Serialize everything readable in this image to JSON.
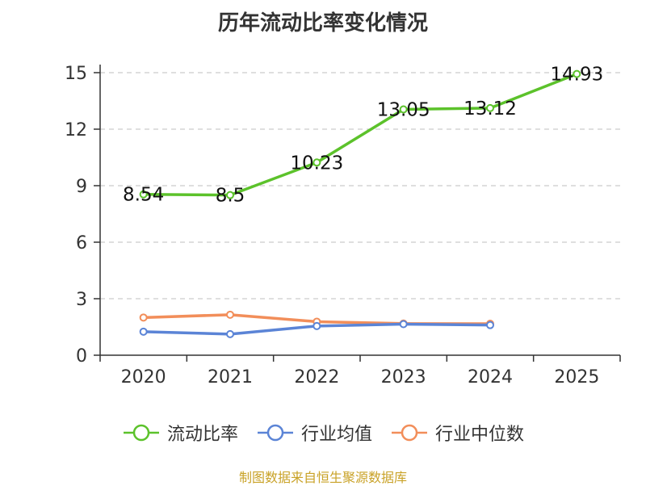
{
  "chart_title": "历年流动比率变化情况",
  "source": "制图数据来自恒生聚源数据库",
  "chart_data": {
    "type": "line",
    "title": "历年流动比率变化情况",
    "categories": [
      "2020",
      "2021",
      "2022",
      "2023",
      "2024",
      "2025"
    ],
    "ylim": [
      0,
      15
    ],
    "yticks": [
      0,
      3,
      6,
      9,
      12,
      15
    ],
    "grid": true,
    "legend_position": "bottom",
    "series": [
      {
        "name": "流动比率",
        "color": "#5cc22b",
        "values": [
          8.54,
          8.5,
          10.23,
          13.05,
          13.12,
          14.93
        ],
        "labels": [
          "8.54",
          "8.5",
          "10.23",
          "13.05",
          "13.12",
          "14.93"
        ],
        "show_labels": true
      },
      {
        "name": "行业均值",
        "color": "#5b84d6",
        "values": [
          1.25,
          1.12,
          1.55,
          1.65,
          1.6,
          null
        ],
        "show_labels": false
      },
      {
        "name": "行业中位数",
        "color": "#f28e5a",
        "values": [
          2.0,
          2.15,
          1.78,
          1.68,
          1.67,
          null
        ],
        "show_labels": false
      }
    ]
  }
}
